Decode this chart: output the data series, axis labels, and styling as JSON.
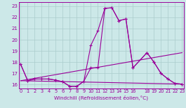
{
  "xlabel": "Windchill (Refroidissement éolien,°C)",
  "bg_color": "#cce8e8",
  "line_color": "#990099",
  "grid_color": "#aacccc",
  "x_ticks": [
    0,
    1,
    2,
    3,
    4,
    5,
    6,
    7,
    8,
    9,
    10,
    11,
    12,
    13,
    14,
    15,
    16,
    18,
    19,
    20,
    21,
    22,
    23
  ],
  "y_ticks": [
    16,
    17,
    18,
    19,
    20,
    21,
    22,
    23
  ],
  "xlim": [
    -0.3,
    23.3
  ],
  "ylim": [
    15.65,
    23.35
  ],
  "line1_x": [
    0,
    1,
    2,
    3,
    4,
    5,
    6,
    7,
    8,
    9,
    10,
    11,
    12,
    13,
    14,
    15,
    16,
    18,
    19,
    20,
    21,
    22,
    23
  ],
  "line1_y": [
    17.8,
    16.35,
    16.5,
    16.5,
    16.5,
    16.4,
    16.25,
    15.85,
    15.85,
    16.3,
    19.5,
    20.8,
    22.8,
    22.85,
    21.7,
    21.85,
    17.5,
    18.85,
    18.0,
    17.0,
    16.5,
    16.1,
    16.05
  ],
  "line2_x": [
    0,
    1,
    2,
    3,
    4,
    5,
    6,
    7,
    8,
    9,
    10,
    11,
    12,
    13,
    14,
    15,
    16,
    18,
    19,
    20,
    21,
    22,
    23
  ],
  "line2_y": [
    17.8,
    16.35,
    16.5,
    16.5,
    16.5,
    16.4,
    16.25,
    15.85,
    15.85,
    16.3,
    17.5,
    17.5,
    22.8,
    22.85,
    21.7,
    21.85,
    17.5,
    18.85,
    18.0,
    17.0,
    16.5,
    16.1,
    16.05
  ],
  "line3_x": [
    0,
    23
  ],
  "line3_y": [
    16.35,
    18.85
  ],
  "line4_x": [
    0,
    23
  ],
  "line4_y": [
    16.35,
    16.05
  ]
}
